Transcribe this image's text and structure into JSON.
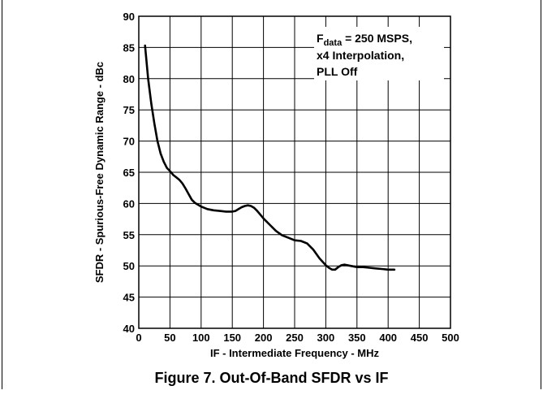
{
  "chart_data": {
    "type": "line",
    "title": "Figure 7. Out-Of-Band SFDR vs IF",
    "xlabel": "IF - Intermediate Frequency - MHz",
    "ylabel": "SFDR - Spurious-Free Dynamic Range - dBc",
    "xlim": [
      0,
      500
    ],
    "ylim": [
      40,
      90
    ],
    "xticks": [
      0,
      50,
      100,
      150,
      200,
      250,
      300,
      350,
      400,
      450,
      500
    ],
    "yticks": [
      40,
      45,
      50,
      55,
      60,
      65,
      70,
      75,
      80,
      85,
      90
    ],
    "grid": true,
    "annotation": {
      "line1_base": "F",
      "line1_sub": "data",
      "line1_rest": " = 250 MSPS,",
      "line2": "x4 Interpolation,",
      "line3": "PLL Off"
    },
    "series": [
      {
        "x": [
          10,
          15,
          20,
          25,
          30,
          35,
          40,
          45,
          50,
          55,
          60,
          65,
          70,
          75,
          80,
          85,
          90,
          100,
          110,
          120,
          130,
          140,
          150,
          155,
          160,
          165,
          170,
          175,
          180,
          185,
          190,
          195,
          200,
          210,
          220,
          230,
          240,
          250,
          260,
          270,
          280,
          290,
          300,
          305,
          310,
          315,
          320,
          325,
          330,
          340,
          350,
          360,
          370,
          380,
          390,
          400,
          410
        ],
        "y": [
          85.3,
          80,
          76,
          72.8,
          70,
          68,
          66.7,
          65.7,
          65.2,
          64.6,
          64.2,
          63.8,
          63.2,
          62.4,
          61.5,
          60.6,
          60.1,
          59.5,
          59.1,
          58.9,
          58.8,
          58.7,
          58.7,
          58.8,
          59.1,
          59.4,
          59.6,
          59.7,
          59.6,
          59.3,
          58.8,
          58.2,
          57.6,
          56.6,
          55.6,
          54.9,
          54.5,
          54.1,
          54.0,
          53.6,
          52.6,
          51.2,
          50.1,
          49.7,
          49.4,
          49.4,
          49.8,
          50.1,
          50.2,
          50.0,
          49.8,
          49.8,
          49.7,
          49.6,
          49.5,
          49.4,
          49.4
        ]
      }
    ]
  }
}
